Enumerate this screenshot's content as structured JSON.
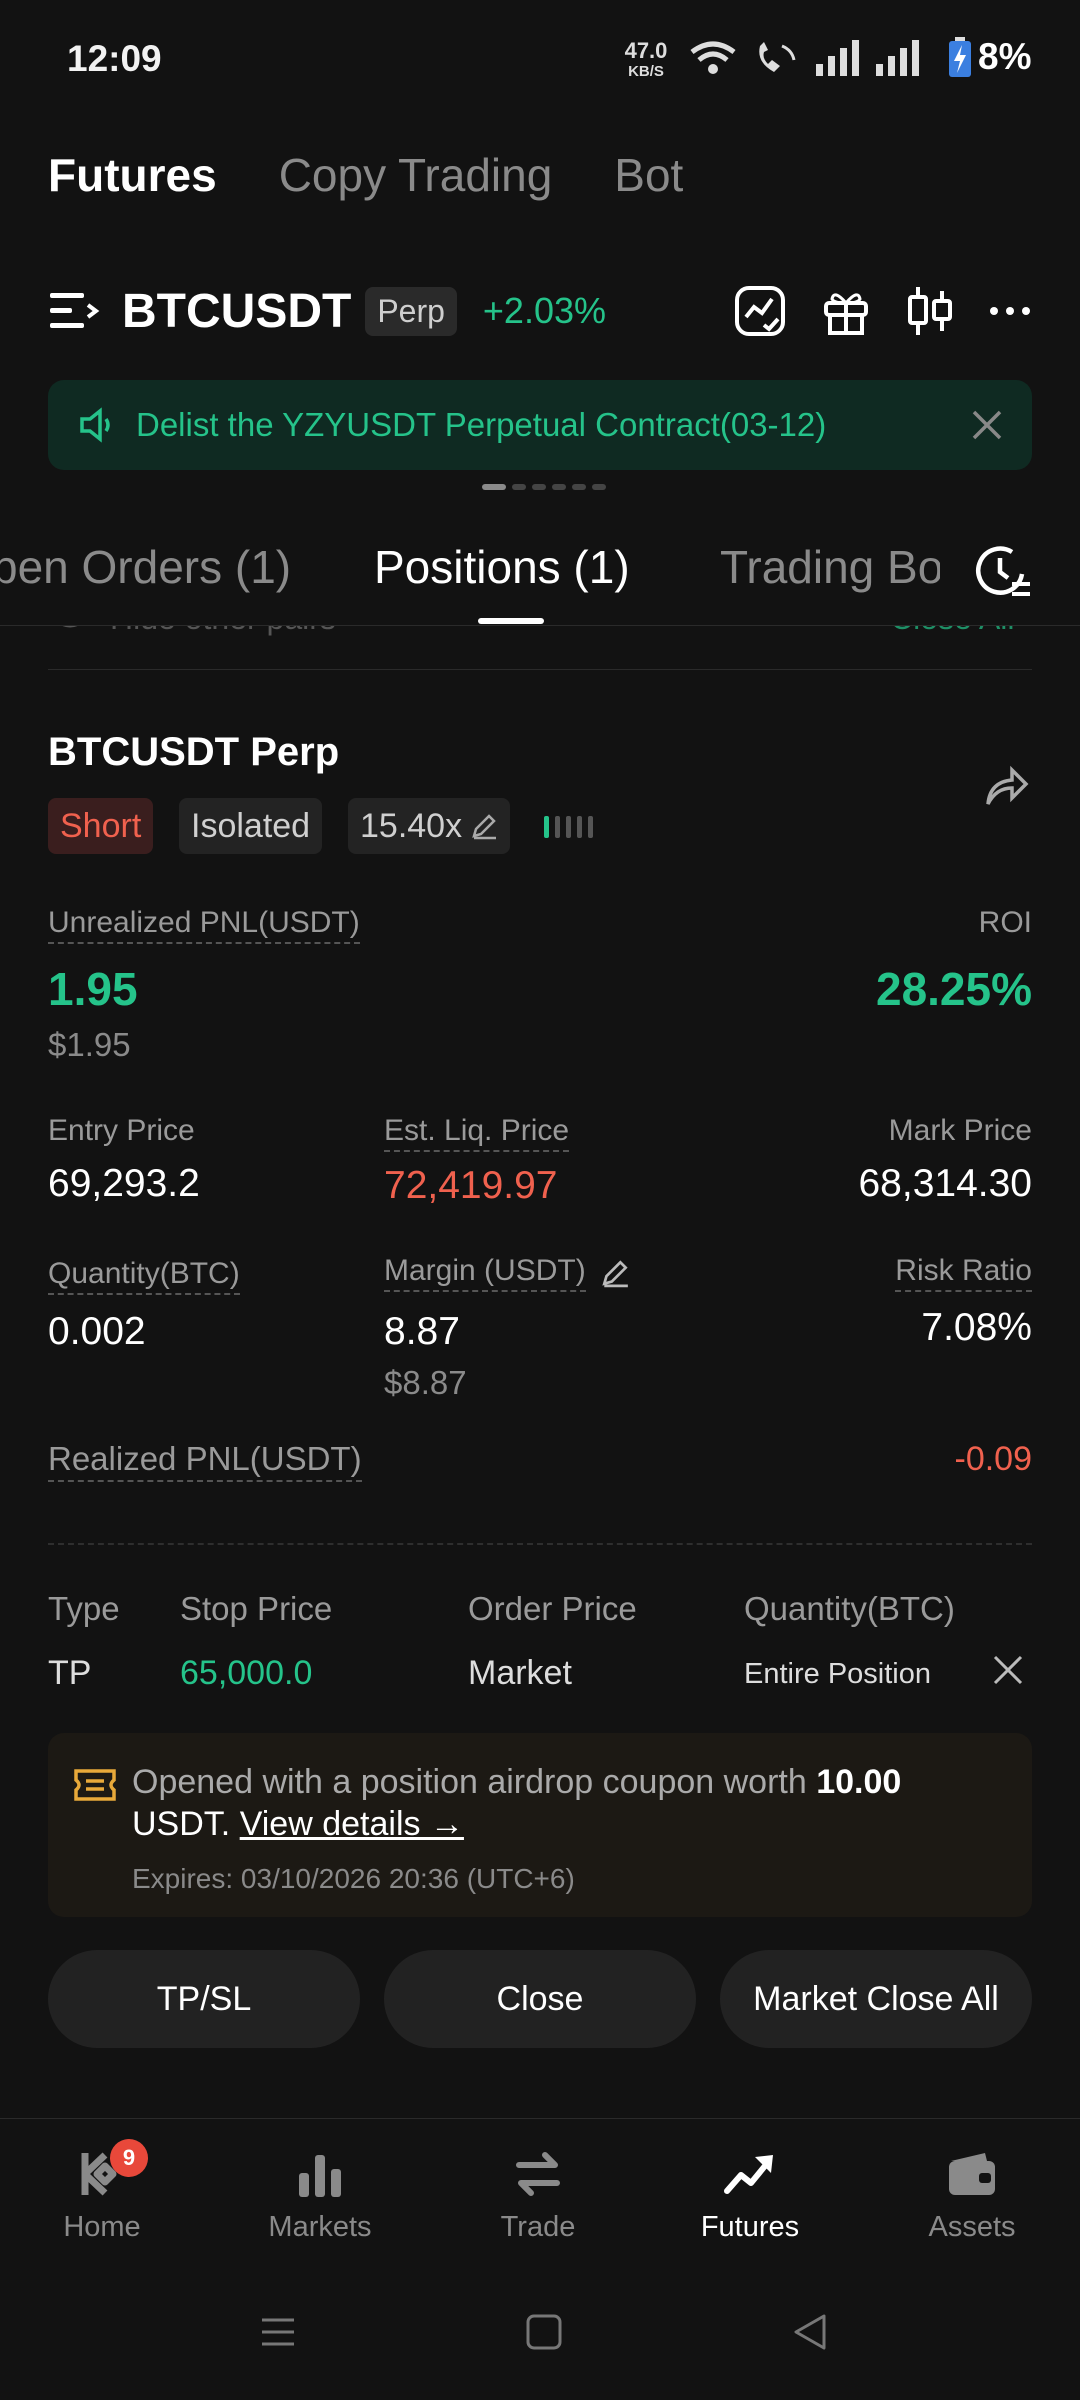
{
  "status": {
    "time": "12:09",
    "net_speed": "47.0",
    "net_unit": "KB/S",
    "battery": "8%"
  },
  "topnav": {
    "futures": "Futures",
    "copy": "Copy Trading",
    "bot": "Bot"
  },
  "header": {
    "symbol": "BTCUSDT",
    "perp": "Perp",
    "change": "+2.03%"
  },
  "banner": {
    "text": "Delist the YZYUSDT Perpetual Contract(03-12)"
  },
  "tabs": {
    "open_orders": "pen Orders (1)",
    "positions": "Positions (1)",
    "trading_bots": "Trading Bo"
  },
  "filter": {
    "hide_other": "Hide other pairs",
    "close_all": "Close All"
  },
  "position": {
    "name": "BTCUSDT Perp",
    "side": "Short",
    "margin_mode": "Isolated",
    "leverage": "15.40x",
    "unrealized_label": "Unrealized PNL(USDT)",
    "unrealized_value": "1.95",
    "unrealized_usd": "$1.95",
    "roi_label": "ROI",
    "roi_value": "28.25%",
    "entry_label": "Entry Price",
    "entry_value": "69,293.2",
    "liq_label": "Est. Liq. Price",
    "liq_value": "72,419.97",
    "mark_label": "Mark Price",
    "mark_value": "68,314.30",
    "qty_label": "Quantity(BTC)",
    "qty_value": "0.002",
    "margin_label": "Margin (USDT)",
    "margin_value": "8.87",
    "margin_usd": "$8.87",
    "risk_label": "Risk Ratio",
    "risk_value": "7.08%",
    "realized_label": "Realized PNL(USDT)",
    "realized_value": "-0.09"
  },
  "tpsl": {
    "headers": {
      "type": "Type",
      "stop": "Stop Price",
      "order": "Order Price",
      "qty": "Quantity(BTC)"
    },
    "row": {
      "type": "TP",
      "stop": "65,000.0",
      "order": "Market",
      "qty": "Entire Position"
    }
  },
  "coupon": {
    "text_pre": "Opened with a position airdrop coupon worth ",
    "amount": "10.00",
    "text_unit": "USDT.",
    "link": "View details →",
    "expires": "Expires: 03/10/2026 20:36 (UTC+6)"
  },
  "buttons": {
    "tpsl": "TP/SL",
    "close": "Close",
    "market_close_all": "Market Close All"
  },
  "bottomnav": {
    "home": "Home",
    "home_badge": "9",
    "markets": "Markets",
    "trade": "Trade",
    "futures": "Futures",
    "assets": "Assets"
  },
  "colors": {
    "green": "#25c38a",
    "red": "#f0614e",
    "bg": "#121212"
  }
}
